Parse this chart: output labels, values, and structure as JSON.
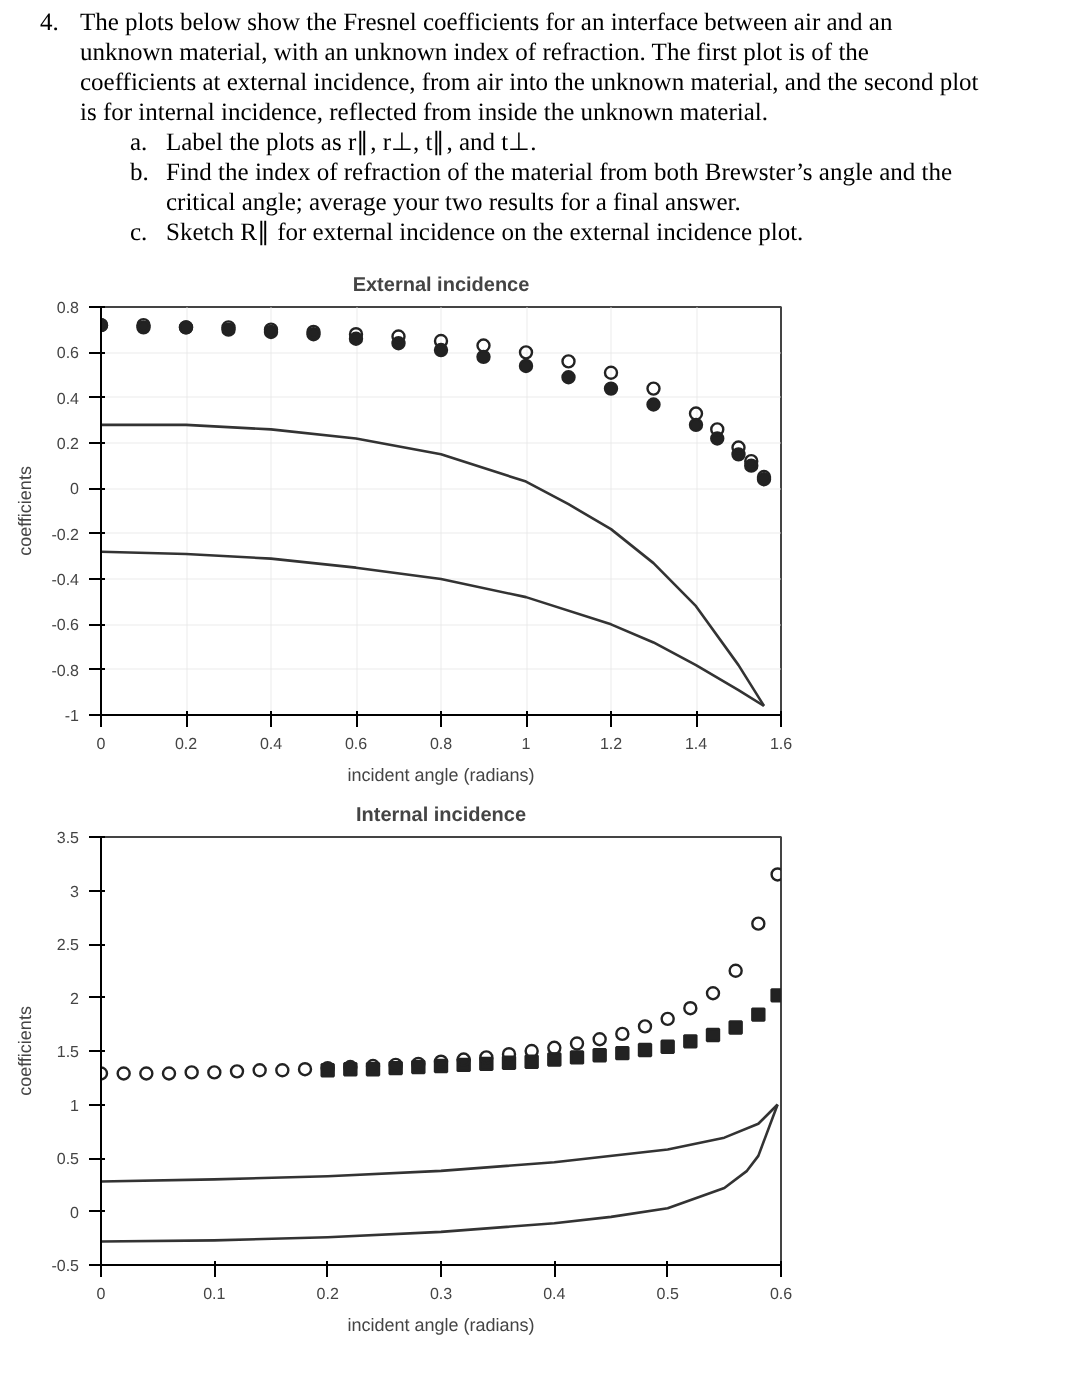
{
  "chart_data": [
    {
      "type": "line",
      "title": "External incidence",
      "xlabel": "incident angle (radians)",
      "ylabel": "coefficients",
      "annotations": [
        "4.",
        "The plots below show the Fresnel coefficients for an interface between air and an unknown material, with an unknown index of refraction. The first plot is of the coefficients at external incidence, from air into the unknown material, and the second plot is for internal incidence, reflected from inside the unknown material.",
        "a.",
        "Label the plots as r∥, r⊥, t∥, and t⊥.",
        "b.",
        "Find the index of refraction of the material from both Brewster’s angle and the critical angle; average your two results for a final answer.",
        "c.",
        "Sketch R∥ for external incidence on the external incidence plot."
      ],
      "xlim": [
        0,
        1.6
      ],
      "xticks": [
        0,
        0.2,
        0.4,
        0.6,
        0.8,
        1,
        1.2,
        1.4,
        1.6
      ],
      "ylim": [
        -1,
        0.8
      ],
      "yticks": [
        -1,
        -0.8,
        -0.6,
        -0.4,
        -0.2,
        0,
        0.2,
        0.4,
        0.6,
        0.8
      ],
      "grid": true,
      "series": [
        {
          "type": "scatter",
          "marker": "circle",
          "color": "#222222",
          "x": [
            0,
            0.1,
            0.2,
            0.3,
            0.4,
            0.5,
            0.6,
            0.7,
            0.8,
            0.9,
            1.0,
            1.1,
            1.2,
            1.3,
            1.4,
            1.45,
            1.5,
            1.53,
            1.56
          ],
          "values": [
            0.72,
            0.72,
            0.71,
            0.71,
            0.7,
            0.69,
            0.68,
            0.67,
            0.65,
            0.63,
            0.6,
            0.56,
            0.51,
            0.44,
            0.33,
            0.26,
            0.18,
            0.12,
            0.05
          ]
        },
        {
          "type": "scatter",
          "marker": "circle",
          "color": "#222222",
          "x": [
            0,
            0.1,
            0.2,
            0.3,
            0.4,
            0.5,
            0.6,
            0.7,
            0.8,
            0.9,
            1.0,
            1.1,
            1.2,
            1.3,
            1.4,
            1.45,
            1.5,
            1.53,
            1.56
          ],
          "values": [
            0.72,
            0.71,
            0.71,
            0.7,
            0.69,
            0.68,
            0.66,
            0.64,
            0.61,
            0.58,
            0.54,
            0.49,
            0.44,
            0.37,
            0.28,
            0.22,
            0.15,
            0.1,
            0.04
          ]
        },
        {
          "color": "#333333",
          "x": [
            0,
            0.2,
            0.4,
            0.6,
            0.8,
            1.0,
            1.1,
            1.2,
            1.3,
            1.4,
            1.5,
            1.56
          ],
          "values": [
            0.28,
            0.28,
            0.26,
            0.22,
            0.15,
            0.03,
            -0.07,
            -0.18,
            -0.33,
            -0.52,
            -0.78,
            -0.96
          ]
        },
        {
          "color": "#333333",
          "x": [
            0,
            0.2,
            0.4,
            0.6,
            0.8,
            1.0,
            1.2,
            1.3,
            1.4,
            1.5,
            1.56
          ],
          "values": [
            -0.28,
            -0.29,
            -0.31,
            -0.35,
            -0.4,
            -0.48,
            -0.6,
            -0.68,
            -0.78,
            -0.89,
            -0.96
          ]
        }
      ]
    },
    {
      "type": "line",
      "title": "Internal incidence",
      "xlabel": "incident angle (radians)",
      "ylabel": "coefficients",
      "xlim": [
        0,
        0.6
      ],
      "xticks": [
        0,
        0.1,
        0.2,
        0.3,
        0.4,
        0.5,
        0.6
      ],
      "ylim": [
        -0.5,
        3.5
      ],
      "yticks": [
        -0.5,
        0,
        0.5,
        1,
        1.5,
        2,
        2.5,
        3,
        3.5
      ],
      "series": [
        {
          "type": "scatter",
          "marker": "circle",
          "color": "#222222",
          "x": [
            0,
            0.02,
            0.04,
            0.06,
            0.08,
            0.1,
            0.12,
            0.14,
            0.16,
            0.18,
            0.2,
            0.22,
            0.24,
            0.26,
            0.28,
            0.3,
            0.32,
            0.34,
            0.36,
            0.38,
            0.4,
            0.42,
            0.44,
            0.46,
            0.48,
            0.5,
            0.52,
            0.54,
            0.56,
            0.58,
            0.597
          ],
          "values": [
            1.29,
            1.29,
            1.29,
            1.29,
            1.3,
            1.3,
            1.31,
            1.32,
            1.32,
            1.33,
            1.34,
            1.35,
            1.36,
            1.37,
            1.38,
            1.4,
            1.42,
            1.44,
            1.47,
            1.5,
            1.53,
            1.57,
            1.61,
            1.66,
            1.73,
            1.8,
            1.9,
            2.04,
            2.25,
            2.69,
            3.15
          ]
        },
        {
          "type": "scatter",
          "marker": "square",
          "color": "#222222",
          "x": [
            0.2,
            0.22,
            0.24,
            0.26,
            0.28,
            0.3,
            0.32,
            0.34,
            0.36,
            0.38,
            0.4,
            0.42,
            0.44,
            0.46,
            0.48,
            0.5,
            0.52,
            0.54,
            0.56,
            0.58,
            0.597
          ],
          "values": [
            1.32,
            1.33,
            1.33,
            1.34,
            1.35,
            1.36,
            1.37,
            1.38,
            1.39,
            1.4,
            1.42,
            1.44,
            1.46,
            1.48,
            1.51,
            1.54,
            1.59,
            1.65,
            1.72,
            1.84,
            2.02
          ]
        },
        {
          "color": "#333333",
          "x": [
            0,
            0.1,
            0.2,
            0.3,
            0.4,
            0.5,
            0.55,
            0.58,
            0.597
          ],
          "values": [
            0.28,
            0.3,
            0.33,
            0.38,
            0.46,
            0.58,
            0.69,
            0.82,
            1.0
          ]
        },
        {
          "color": "#333333",
          "x": [
            0,
            0.1,
            0.2,
            0.3,
            0.4,
            0.45,
            0.5,
            0.55,
            0.57,
            0.58,
            0.597
          ],
          "values": [
            -0.28,
            -0.27,
            -0.24,
            -0.19,
            -0.11,
            -0.05,
            0.03,
            0.22,
            0.38,
            0.52,
            1.0
          ]
        }
      ]
    }
  ]
}
